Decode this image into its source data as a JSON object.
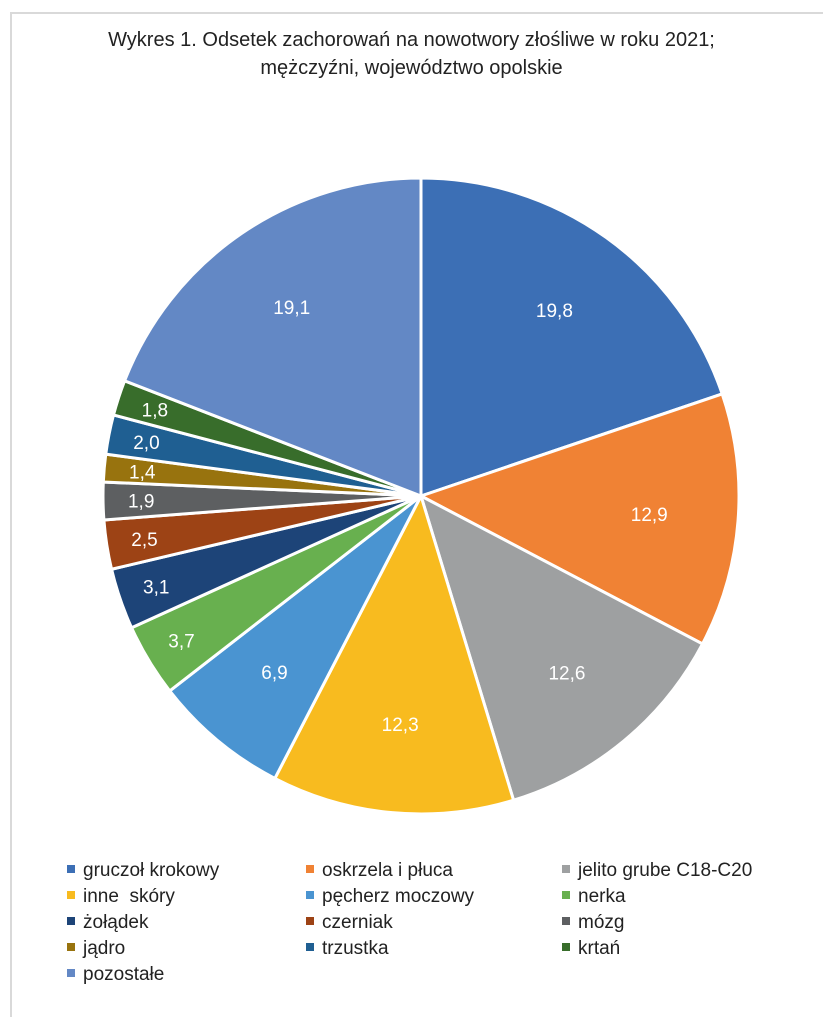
{
  "chart_data": {
    "type": "pie",
    "title": [
      "Wykres 1. Odsetek zachorowań na nowotwory złośliwe w roku 2021;",
      "mężczyźni, województwo opolskie"
    ],
    "categories": [
      "gruczoł krokowy",
      "oskrzela i płuca",
      "jelito grube C18-C20",
      "inne  skóry",
      "pęcherz moczowy",
      "nerka",
      "żołądek",
      "czerniak",
      "mózg",
      "jądro",
      "trzustka",
      "krtań",
      "pozostałe"
    ],
    "values": [
      19.8,
      12.9,
      12.6,
      12.3,
      6.9,
      3.7,
      3.1,
      2.5,
      1.9,
      1.4,
      2.0,
      1.8,
      19.1
    ],
    "value_labels": [
      "19,8",
      "12,9",
      "12,6",
      "12,3",
      "6,9",
      "3,7",
      "3,1",
      "2,5",
      "1,9",
      "1,4",
      "2,0",
      "1,8",
      "19,1"
    ],
    "colors": [
      "#3c6fb5",
      "#f08234",
      "#9ea0a1",
      "#f8bb1f",
      "#4a94d1",
      "#68b04f",
      "#1d4478",
      "#9d4315",
      "#5d5f61",
      "#98730e",
      "#1f5f92",
      "#386d2b",
      "#6388c5"
    ],
    "label_colors": [
      "#ffffff",
      "#ffffff",
      "#ffffff",
      "#ffffff",
      "#ffffff",
      "#ffffff",
      "#ffffff",
      "#ffffff",
      "#ffffff",
      "#ffffff",
      "#ffffff",
      "#ffffff",
      "#ffffff"
    ],
    "legend_position": "bottom",
    "start_angle": "12 o'clock, clockwise"
  }
}
